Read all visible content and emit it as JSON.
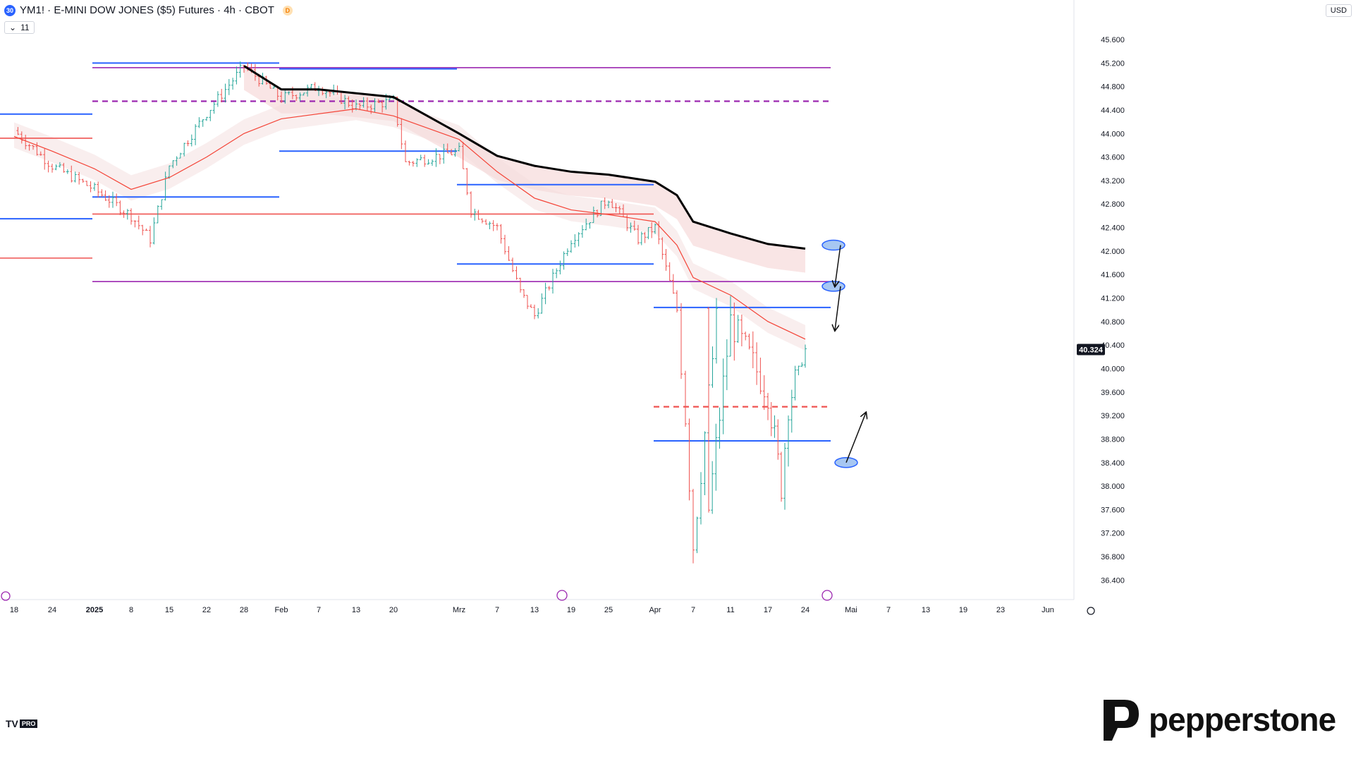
{
  "header": {
    "symbol_badge": "30",
    "title": "YM1! · E-MINI DOW JONES ($5) Futures · 4h · CBOT",
    "d_badge": "D",
    "collapse_count": "11",
    "currency": "USD"
  },
  "branding": {
    "logo_text": "pepperstone",
    "tv_text": "TV",
    "tv_pro": "PRO"
  },
  "colors": {
    "bull": "#26a69a",
    "bear": "#ef5350",
    "blue_line": "#2962ff",
    "magenta_line": "#9c27b0",
    "red_ma": "#f44336",
    "black_ma": "#000000",
    "band": "#f2c6c6",
    "ellipse_fill": "#a7c7f2",
    "ellipse_stroke": "#2962ff"
  },
  "chart_data": {
    "type": "candlestick",
    "interval": "4h",
    "last_price": 40.324,
    "last_price_label": "40.324",
    "y_ticks": [
      "45.600",
      "45.200",
      "44.800",
      "44.400",
      "44.000",
      "43.600",
      "43.200",
      "42.800",
      "42.400",
      "42.000",
      "41.600",
      "41.200",
      "40.800",
      "40.400",
      "40.000",
      "39.600",
      "39.200",
      "38.800",
      "38.400",
      "38.000",
      "37.600",
      "37.200",
      "36.800",
      "36.400"
    ],
    "x_ticks": [
      "18",
      "24",
      "2025",
      "8",
      "15",
      "22",
      "28",
      "Feb",
      "7",
      "13",
      "20",
      "Mrz",
      "7",
      "13",
      "19",
      "25",
      "Apr",
      "7",
      "11",
      "17",
      "24",
      "Mai",
      "7",
      "13",
      "19",
      "23",
      "Jun"
    ],
    "horizontal_levels": [
      {
        "price": 44.33,
        "from": "18",
        "to": "2025",
        "color": "blue_line"
      },
      {
        "price": 43.92,
        "from": "18",
        "to": "2025",
        "color": "bear"
      },
      {
        "price": 42.55,
        "from": "18",
        "to": "2025",
        "color": "blue_line"
      },
      {
        "price": 41.88,
        "from": "18",
        "to": "2025",
        "color": "bear"
      },
      {
        "price": 42.92,
        "from": "2025",
        "to": "Feb",
        "color": "blue_line"
      },
      {
        "price": 45.2,
        "from": "2025",
        "to": "Feb",
        "color": "blue_line"
      },
      {
        "price": 45.12,
        "from": "2025",
        "to": "24 Apr",
        "color": "magenta_line"
      },
      {
        "price": 44.55,
        "from": "2025",
        "to": "24 Apr",
        "color": "magenta_line",
        "style": "dashed"
      },
      {
        "price": 45.1,
        "from": "Feb",
        "to": "Mrz",
        "color": "blue_line"
      },
      {
        "price": 43.7,
        "from": "Feb",
        "to": "Mrz",
        "color": "blue_line"
      },
      {
        "price": 42.63,
        "from": "2025",
        "to": "Apr",
        "color": "bear"
      },
      {
        "price": 43.13,
        "from": "Mrz",
        "to": "Apr",
        "color": "blue_line"
      },
      {
        "price": 41.78,
        "from": "Mrz",
        "to": "Apr",
        "color": "blue_line"
      },
      {
        "price": 41.48,
        "from": "2025",
        "to": "24 Apr",
        "color": "magenta_line"
      },
      {
        "price": 41.04,
        "from": "Apr",
        "to": "24 Apr",
        "color": "blue_line"
      },
      {
        "price": 39.35,
        "from": "Apr",
        "to": "24 Apr",
        "color": "bear",
        "style": "dashed"
      },
      {
        "price": 38.77,
        "from": "Apr",
        "to": "24 Apr",
        "color": "blue_line"
      }
    ],
    "black_ma": [
      {
        "x": "28",
        "y": 45.15
      },
      {
        "x": "Feb",
        "y": 44.75
      },
      {
        "x": "7",
        "y": 44.75
      },
      {
        "x": "20",
        "y": 44.62
      },
      {
        "x": "Mrz",
        "y": 44.0
      },
      {
        "x": "7",
        "y": 43.62
      },
      {
        "x": "13",
        "y": 43.45
      },
      {
        "x": "19",
        "y": 43.35
      },
      {
        "x": "25",
        "y": 43.3
      },
      {
        "x": "Apr",
        "y": 43.18
      },
      {
        "x": "4 Apr",
        "y": 42.95
      },
      {
        "x": "7",
        "y": 42.5
      },
      {
        "x": "11",
        "y": 42.3
      },
      {
        "x": "17",
        "y": 42.12
      },
      {
        "x": "24",
        "y": 42.04
      }
    ],
    "red_ma": [
      {
        "x": "18",
        "y": 43.95
      },
      {
        "x": "24",
        "y": 43.7
      },
      {
        "x": "2025",
        "y": 43.4
      },
      {
        "x": "8",
        "y": 43.05
      },
      {
        "x": "15",
        "y": 43.25
      },
      {
        "x": "22",
        "y": 43.6
      },
      {
        "x": "28",
        "y": 44.0
      },
      {
        "x": "Feb",
        "y": 44.25
      },
      {
        "x": "13",
        "y": 44.42
      },
      {
        "x": "20",
        "y": 44.3
      },
      {
        "x": "Mrz",
        "y": 43.9
      },
      {
        "x": "7",
        "y": 43.35
      },
      {
        "x": "13",
        "y": 42.9
      },
      {
        "x": "19",
        "y": 42.7
      },
      {
        "x": "25",
        "y": 42.62
      },
      {
        "x": "Apr",
        "y": 42.5
      },
      {
        "x": "4 Apr",
        "y": 42.1
      },
      {
        "x": "7",
        "y": 41.55
      },
      {
        "x": "11",
        "y": 41.25
      },
      {
        "x": "17",
        "y": 40.8
      },
      {
        "x": "24",
        "y": 40.5
      }
    ],
    "ohlc_path": [
      {
        "x": "18",
        "y": 44.05
      },
      {
        "x": "24",
        "y": 43.45
      },
      {
        "x": "2025",
        "y": 43.05
      },
      {
        "x": "8",
        "y": 42.6
      },
      {
        "x": "11",
        "y": 42.2
      },
      {
        "x": "15",
        "y": 43.45
      },
      {
        "x": "22",
        "y": 44.35
      },
      {
        "x": "28",
        "y": 45.15
      },
      {
        "x": "Feb",
        "y": 44.6
      },
      {
        "x": "7",
        "y": 44.8
      },
      {
        "x": "13",
        "y": 44.45
      },
      {
        "x": "20",
        "y": 44.55
      },
      {
        "x": "22 Feb",
        "y": 43.5
      },
      {
        "x": "Mrz",
        "y": 43.7
      },
      {
        "x": "4 Mrz",
        "y": 42.7
      },
      {
        "x": "7",
        "y": 42.4
      },
      {
        "x": "11",
        "y": 41.3
      },
      {
        "x": "13",
        "y": 40.9
      },
      {
        "x": "19",
        "y": 42.2
      },
      {
        "x": "25",
        "y": 42.9
      },
      {
        "x": "28 Mrz",
        "y": 42.2
      },
      {
        "x": "Apr",
        "y": 42.4
      },
      {
        "x": "4 Apr",
        "y": 41.0
      },
      {
        "x": "6 Apr",
        "y": 39.2
      },
      {
        "x": "7",
        "y": 37.0
      },
      {
        "x": "9 Apr",
        "y": 40.8
      },
      {
        "x": "10 Apr",
        "y": 37.6
      },
      {
        "x": "11",
        "y": 40.8
      },
      {
        "x": "17",
        "y": 39.6
      },
      {
        "x": "21 Apr",
        "y": 38.0
      },
      {
        "x": "22 Apr",
        "y": 39.4
      },
      {
        "x": "24",
        "y": 40.324
      }
    ],
    "annotations": [
      {
        "type": "ellipse",
        "x": "24",
        "y": 42.1
      },
      {
        "type": "ellipse",
        "x": "24",
        "y": 41.4
      },
      {
        "type": "ellipse",
        "x": "25 Apr",
        "y": 38.4
      },
      {
        "type": "arrow",
        "from": [
          42.1,
          "24"
        ],
        "to": [
          41.4,
          "25 Apr"
        ]
      },
      {
        "type": "arrow",
        "from": [
          41.4,
          "24"
        ],
        "to": [
          40.65,
          "25 Apr"
        ]
      },
      {
        "type": "arrow",
        "from": [
          38.4,
          "25 Apr"
        ],
        "to": [
          39.25,
          "27 Apr"
        ]
      }
    ]
  }
}
